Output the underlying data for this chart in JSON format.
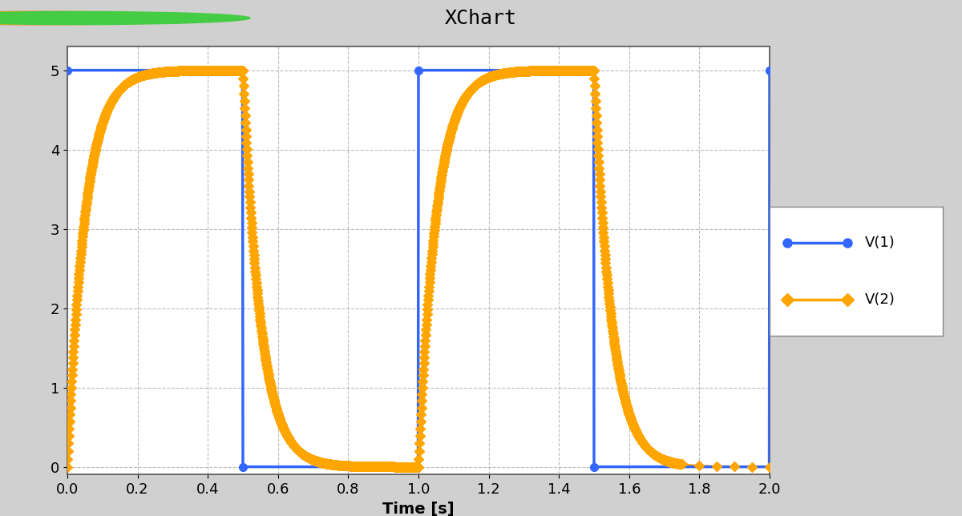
{
  "title": "XChart",
  "xlabel": "Time [s]",
  "ylabel": "",
  "xlim": [
    0,
    2
  ],
  "ylim": [
    -0.1,
    5.3
  ],
  "yticks": [
    0,
    1,
    2,
    3,
    4,
    5
  ],
  "xticks": [
    0,
    0.2,
    0.4,
    0.6,
    0.8,
    1.0,
    1.2,
    1.4,
    1.6,
    1.8,
    2.0
  ],
  "v1_color": "#3366FF",
  "v2_color": "#FFA500",
  "background_color": "#D0D0D0",
  "plot_bg_color": "#FFFFFF",
  "grid_color": "#AAAAAA",
  "legend_labels": [
    "V(1)",
    "V(2)"
  ],
  "RC": 0.05,
  "period": 1.0,
  "high_time": 0.5,
  "amplitude": 5.0,
  "t_end": 2.0,
  "dt": 0.001
}
